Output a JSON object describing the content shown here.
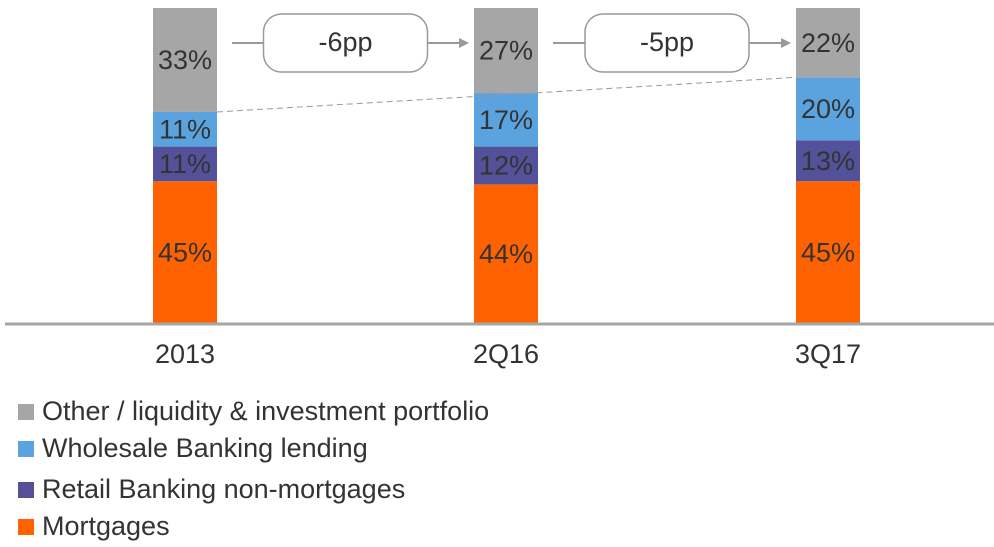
{
  "chart_data": {
    "type": "bar",
    "stacked": true,
    "categories": [
      "2013",
      "2Q16",
      "3Q17"
    ],
    "series": [
      {
        "name": "Mortgages",
        "color": "#ff6200",
        "values": [
          45,
          44,
          45
        ],
        "value_labels": [
          "45%",
          "44%",
          "45%"
        ]
      },
      {
        "name": "Retail Banking non-mortgages",
        "color": "#525199",
        "values": [
          11,
          12,
          13
        ],
        "value_labels": [
          "11%",
          "12%",
          "13%"
        ]
      },
      {
        "name": "Wholesale Banking lending",
        "color": "#5ba3de",
        "values": [
          11,
          17,
          20
        ],
        "value_labels": [
          "11%",
          "17%",
          "20%"
        ]
      },
      {
        "name": "Other / liquidity & investment portfolio",
        "color": "#a6a6a6",
        "values": [
          33,
          27,
          22
        ],
        "value_labels": [
          "33%",
          "27%",
          "22%"
        ]
      }
    ],
    "annotations": [
      "-6pp",
      "-5pp"
    ],
    "ylim": [
      0,
      100
    ]
  }
}
